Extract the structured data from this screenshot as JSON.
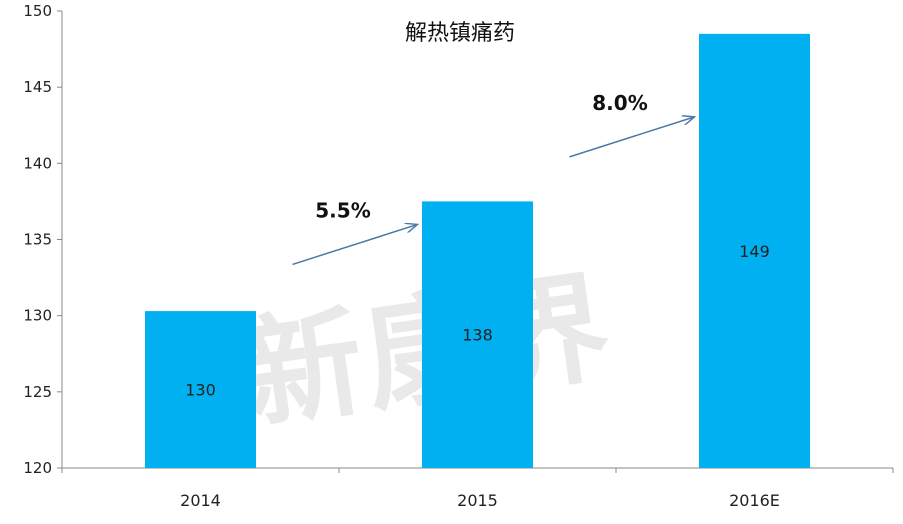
{
  "chart_data": {
    "type": "bar",
    "title": "解热镇痛药",
    "categories": [
      "2014",
      "2015",
      "2016E"
    ],
    "values": [
      130.3,
      137.5,
      148.5
    ],
    "data_labels": [
      "130",
      "138",
      "149"
    ],
    "ylim": [
      120,
      150
    ],
    "yticks": [
      120,
      125,
      130,
      135,
      140,
      145,
      150
    ],
    "grid": false,
    "bar_color": "#00B0F0",
    "annotations": [
      {
        "text": "5.5%",
        "between": [
          "2014",
          "2015"
        ]
      },
      {
        "text": "8.0%",
        "between": [
          "2015",
          "2016E"
        ]
      }
    ],
    "watermark": "新康界"
  }
}
